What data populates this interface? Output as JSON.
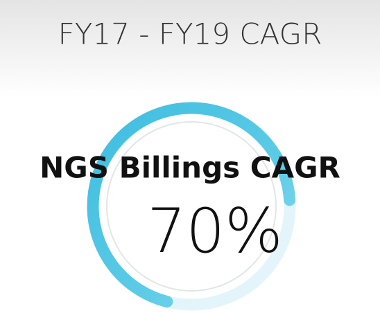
{
  "chart_data": {
    "type": "ring",
    "title": "FY17 - FY19 CAGR",
    "subtitle": "NGS Billings CAGR",
    "values": [
      70
    ],
    "value_labels": [
      "70%"
    ],
    "color": "#4ec3e0"
  }
}
